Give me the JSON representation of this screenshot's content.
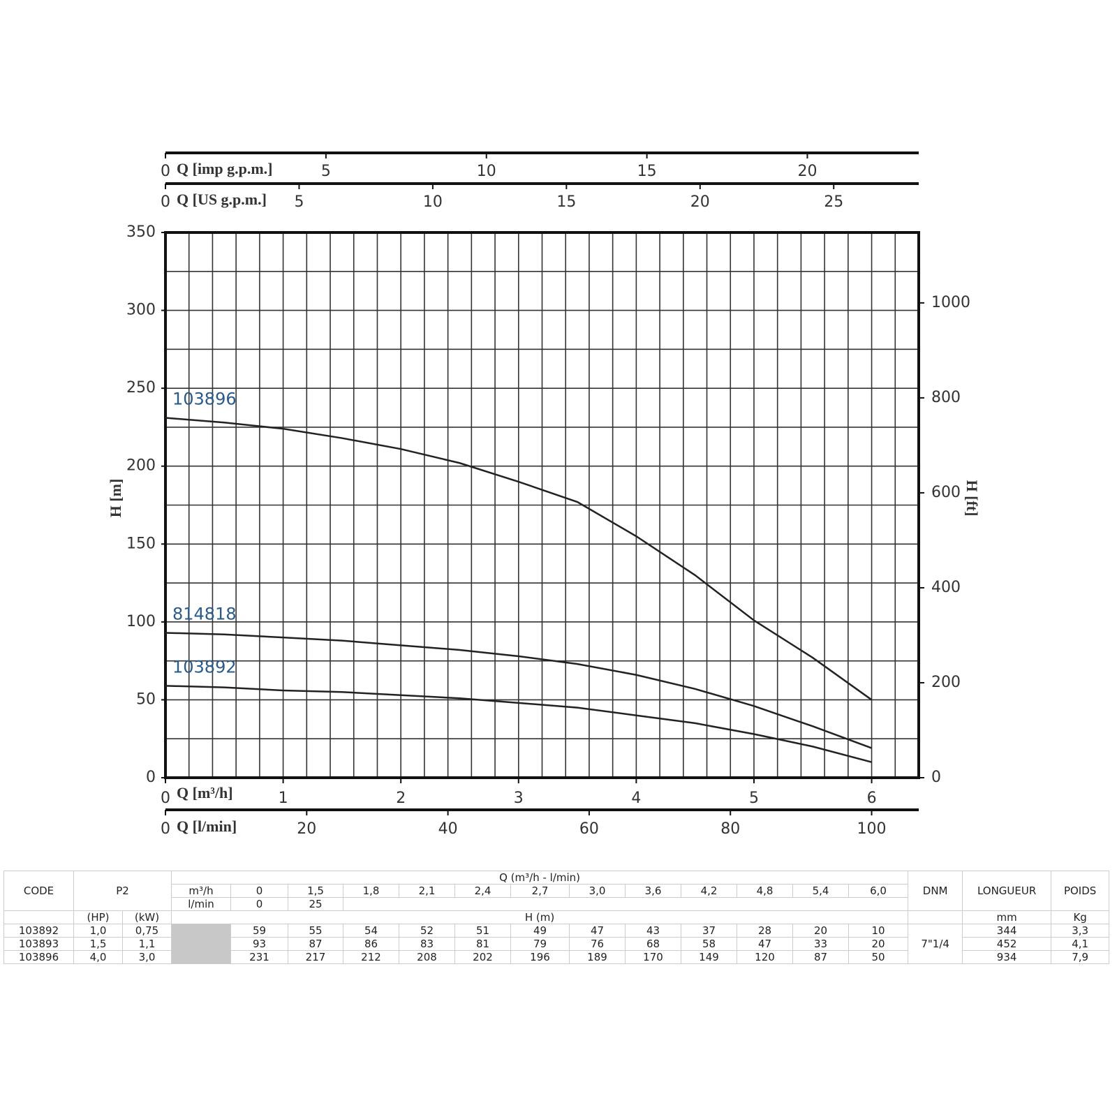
{
  "chart_data": {
    "type": "line",
    "x": [
      0,
      0.5,
      1,
      1.5,
      2,
      2.5,
      3,
      3.5,
      4,
      4.5,
      5,
      5.5,
      6
    ],
    "series": [
      {
        "name": "103896",
        "color": "#222222",
        "values": [
          231,
          228,
          224,
          218,
          211,
          202,
          190,
          177,
          155,
          130,
          101,
          77,
          50
        ]
      },
      {
        "name": "814818",
        "color": "#222222",
        "values": [
          93,
          92,
          90,
          88,
          85,
          82,
          78,
          73,
          66,
          57,
          46,
          33,
          19
        ]
      },
      {
        "name": "103892",
        "color": "#222222",
        "values": [
          59,
          58,
          56,
          55,
          53,
          51,
          48,
          45,
          40,
          35,
          28,
          20,
          10
        ]
      }
    ],
    "x_label": "Q [m³/h]",
    "xlim": [
      0,
      6.4
    ],
    "xticks": [
      0,
      1,
      2,
      3,
      4,
      5,
      6
    ],
    "y_label": "H [m]",
    "ylim": [
      0,
      350
    ],
    "yticks": [
      0,
      50,
      100,
      150,
      200,
      250,
      300,
      350
    ],
    "y2_label": "H [ft]",
    "y2lim": [
      0,
      1148.29
    ],
    "y2ticks": [
      0,
      200,
      400,
      600,
      800,
      1000
    ],
    "grid": true,
    "minor_grid": {
      "x": 0.2,
      "y": 25
    },
    "top_axes": [
      {
        "label": "Q [imp g.p.m.]",
        "lim": [
          0,
          23.47
        ],
        "ticks": [
          0,
          5,
          10,
          15,
          20
        ]
      },
      {
        "label": "Q [US g.p.m.]",
        "lim": [
          0,
          28.18
        ],
        "ticks": [
          0,
          5,
          10,
          15,
          20,
          25
        ]
      }
    ],
    "bottom_axes": [
      {
        "label": "Q [l/min]",
        "lim": [
          0,
          106.67
        ],
        "ticks": [
          0,
          20,
          40,
          60,
          80,
          100
        ]
      }
    ]
  },
  "table": {
    "headers": {
      "code": "CODE",
      "p2": "P2",
      "q": "Q (m³/h - l/min)",
      "dnm": "DNM",
      "longueur": "LONGUEUR",
      "poids": "POIDS"
    },
    "q_units": [
      "m³/h",
      "l/min"
    ],
    "q_m3h": [
      "0",
      "1,5",
      "1,8",
      "2,1",
      "2,4",
      "2,7",
      "3,0",
      "3,6",
      "4,2",
      "4,8",
      "5,4",
      "6,0"
    ],
    "q_lmin": [
      "0",
      "25"
    ],
    "units": {
      "hp": "(HP)",
      "kw": "(kW)",
      "h": "H (m)",
      "mm": "mm",
      "kg": "Kg"
    },
    "dnm": "7\"1/4",
    "rows": [
      {
        "code": "103892",
        "hp": "1,0",
        "kw": "0,75",
        "h": [
          59,
          55,
          54,
          52,
          51,
          49,
          47,
          43,
          37,
          28,
          20,
          10
        ],
        "longueur": 344,
        "poids": "3,3"
      },
      {
        "code": "103893",
        "hp": "1,5",
        "kw": "1,1",
        "h": [
          93,
          87,
          86,
          83,
          81,
          79,
          76,
          68,
          58,
          47,
          33,
          20
        ],
        "longueur": 452,
        "poids": "4,1"
      },
      {
        "code": "103896",
        "hp": "4,0",
        "kw": "3,0",
        "h": [
          231,
          217,
          212,
          208,
          202,
          196,
          189,
          170,
          149,
          120,
          87,
          50
        ],
        "longueur": 934,
        "poids": "7,9"
      }
    ]
  }
}
